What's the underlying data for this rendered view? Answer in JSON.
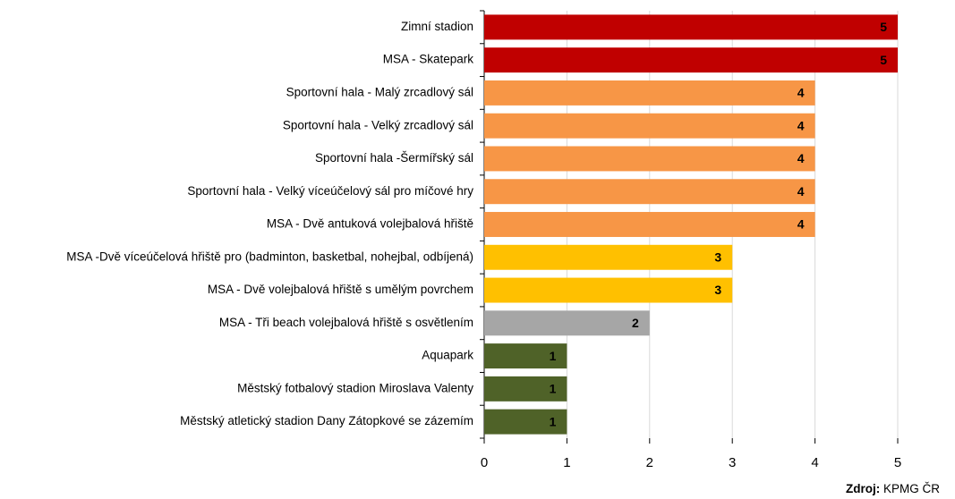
{
  "chart_data": {
    "type": "barh",
    "categories": [
      "Zimní stadion",
      "MSA - Skatepark",
      "Sportovní hala - Malý zrcadlový sál",
      "Sportovní hala - Velký zrcadlový sál",
      "Sportovní hala -Šermířský sál",
      "Sportovní hala - Velký víceúčelový sál pro míčové hry",
      "MSA - Dvě antuková volejbalová hřiště",
      "MSA -Dvě víceúčelová hřiště pro (badminton, basketbal, nohejbal, odbíjená)",
      "MSA - Dvě volejbalová hřiště s umělým povrchem",
      "MSA - Tři beach volejbalová hřiště s osvětlením",
      "Aquapark",
      "Městský fotbalový stadion Miroslava Valenty",
      "Městský atletický stadion Dany Zátopkové se zázemím"
    ],
    "values": [
      5,
      5,
      4,
      4,
      4,
      4,
      4,
      3,
      3,
      2,
      1,
      1,
      1
    ],
    "colors": [
      "#c00000",
      "#c00000",
      "#f79646",
      "#f79646",
      "#f79646",
      "#f79646",
      "#f79646",
      "#ffc000",
      "#ffc000",
      "#a6a6a6",
      "#4f6228",
      "#4f6228",
      "#4f6228"
    ],
    "xlim": [
      0,
      5
    ],
    "xticks": [
      0,
      1,
      2,
      3,
      4,
      5
    ],
    "grid": true,
    "source": {
      "label": "Zdroj:",
      "text": "KPMG ČR"
    }
  }
}
